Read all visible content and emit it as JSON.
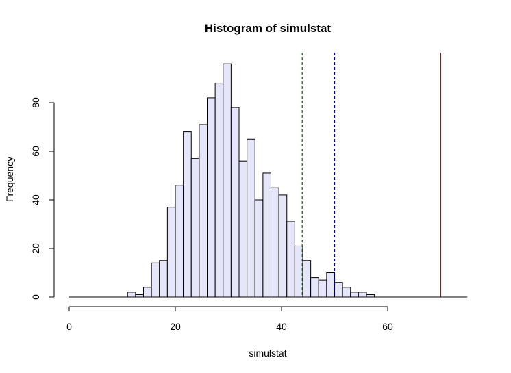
{
  "chart_data": {
    "type": "bar",
    "title": "Histogram of simulstat",
    "xlabel": "simulstat",
    "ylabel": "Frequency",
    "xlim": [
      0,
      75
    ],
    "ylim": [
      0,
      96
    ],
    "xticks": [
      "0",
      "20",
      "40",
      "60"
    ],
    "yticks": [
      "0",
      "20",
      "40",
      "60",
      "80"
    ],
    "bin_width": 1.5,
    "bin_start": 11,
    "values": [
      2,
      1,
      4,
      14,
      15,
      37,
      46,
      68,
      57,
      71,
      82,
      88,
      96,
      78,
      56,
      65,
      40,
      51,
      45,
      42,
      31,
      21,
      15,
      8,
      7,
      10,
      6,
      4,
      2,
      2,
      1
    ],
    "bar_fill": "#e6e6fa",
    "bar_stroke": "#000000",
    "vlines": [
      {
        "x": 43.9,
        "color": "#006400",
        "style": "dashed"
      },
      {
        "x": 50,
        "color": "#000080",
        "style": "dashed"
      },
      {
        "x": 70,
        "color": "#cc0000",
        "style": "solid"
      }
    ],
    "baseline": {
      "from": 0,
      "to": 75
    },
    "grid": false,
    "legend": "none"
  }
}
